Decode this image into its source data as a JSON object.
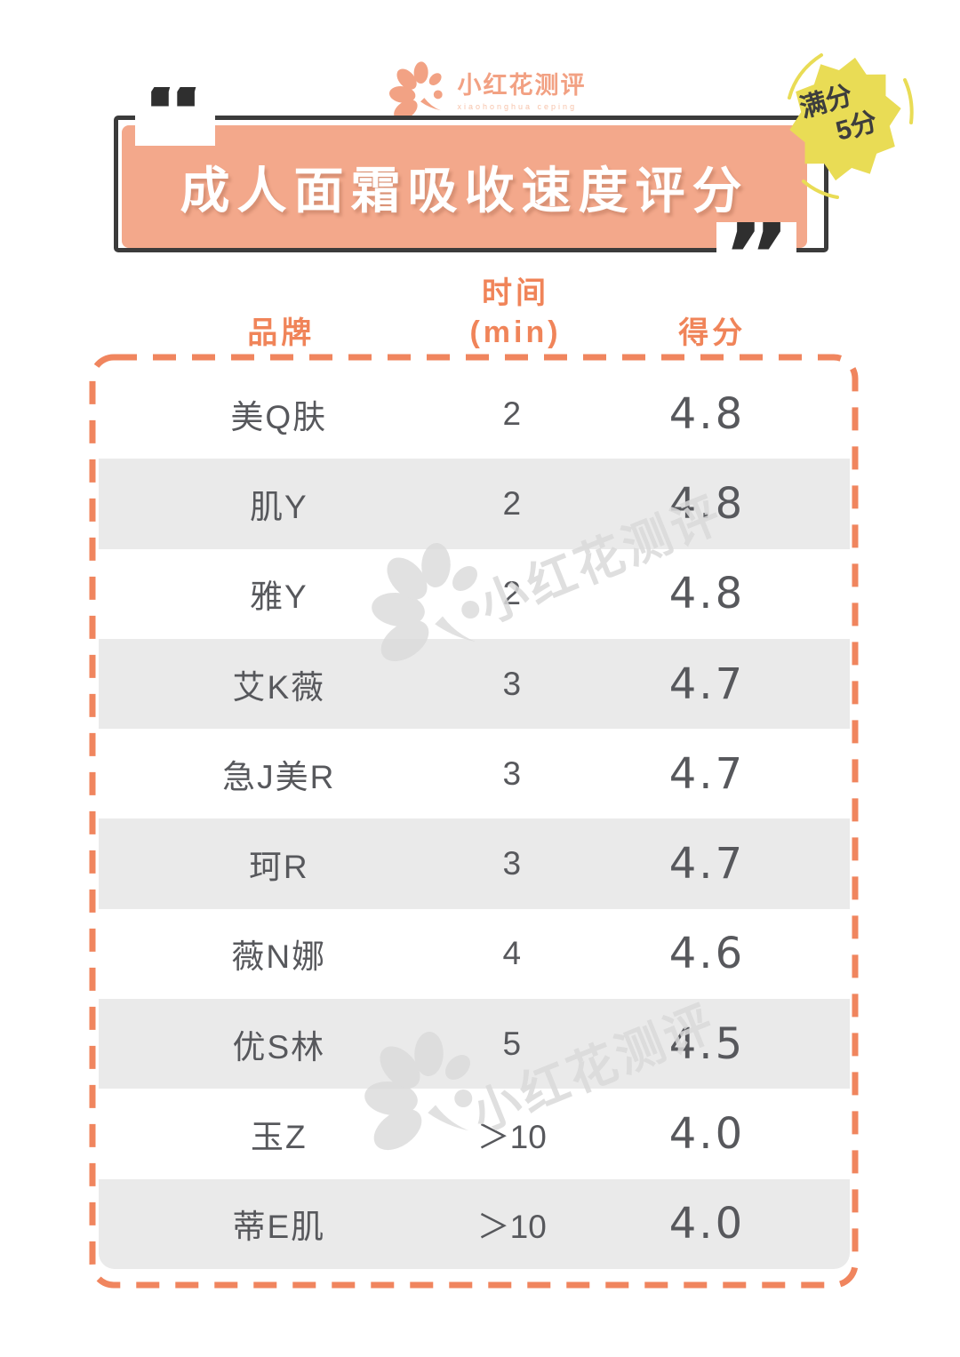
{
  "logo": {
    "name": "小红花测评",
    "tagline": "xiaohonghua ceping"
  },
  "badge": {
    "line1": "满分",
    "line2": "5分"
  },
  "quotes": {
    "open": "“",
    "close": "”"
  },
  "watermark": {
    "text": "小红花测评"
  },
  "chart_data": {
    "type": "table",
    "title": "成人面霜吸收速度评分",
    "badge_text": "满分 5分",
    "score_max": 5,
    "columns": {
      "brand": "品牌",
      "time": "时间",
      "time_unit": "(min)",
      "score": "得分"
    },
    "rows": [
      {
        "brand": "美Q肤",
        "time": "2",
        "score": "4.8"
      },
      {
        "brand": "肌Y",
        "time": "2",
        "score": "4.8"
      },
      {
        "brand": "雅Y",
        "time": "2",
        "score": "4.8"
      },
      {
        "brand": "艾K薇",
        "time": "3",
        "score": "4.7"
      },
      {
        "brand": "急J美R",
        "time": "3",
        "score": "4.7"
      },
      {
        "brand": "珂R",
        "time": "3",
        "score": "4.7"
      },
      {
        "brand": "薇N娜",
        "time": "4",
        "score": "4.6"
      },
      {
        "brand": "优S林",
        "time": "5",
        "score": "4.5"
      },
      {
        "brand": "玉Z",
        "time": "＞10",
        "score": "4.0"
      },
      {
        "brand": "蒂E肌",
        "time": "＞10",
        "score": "4.0"
      }
    ]
  },
  "colors": {
    "salmon": "#F3A88B",
    "orange": "#F08459",
    "yellow": "#E9DC55",
    "dark": "#3B3B3B",
    "row_gray": "#EAEAEA",
    "text": "#57585C",
    "watermark": "#DADADA"
  }
}
